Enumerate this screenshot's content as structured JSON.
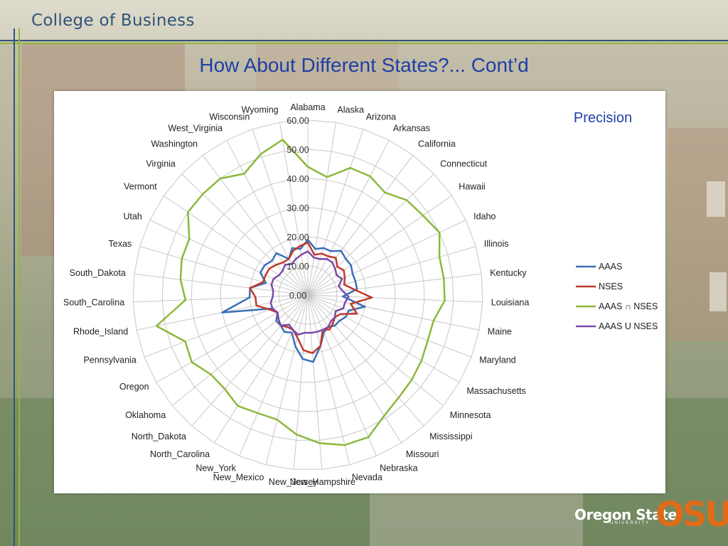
{
  "header": {
    "title": "College of Business"
  },
  "slide": {
    "title": "How About Different States?... Cont’d"
  },
  "logo": {
    "name": "Oregon State",
    "sub": "UNIVERSITY",
    "mark": "OSU"
  },
  "colors": {
    "aaas": "#3a6fb6",
    "nses": "#c0392b",
    "intersection": "#8cb83a",
    "union": "#7b4aa8",
    "title": "#1f3fa6",
    "header": "#2f5478"
  },
  "chart_data": {
    "type": "radar",
    "title": "Precision",
    "categories": [
      "Alabama",
      "Alaska",
      "Arizona",
      "Arkansas",
      "California",
      "Connecticut",
      "Hawaii",
      "Idaho",
      "Illinois",
      "Kentucky",
      "Louisiana",
      "Maine",
      "Maryland",
      "Massachusetts",
      "Minnesota",
      "Mississippi",
      "Missouri",
      "Nebraska",
      "Nevada",
      "New_Hampshire",
      "New_Jersey",
      "New_Mexico",
      "New_York",
      "North_Carolina",
      "North_Dakota",
      "Oklahoma",
      "Oregon",
      "Pennsylvania",
      "Rhode_Island",
      "South_Carolina",
      "South_Dakota",
      "Texas",
      "Utah",
      "Vermont",
      "Virginia",
      "Washington",
      "West_Virginia",
      "Wisconsin",
      "Wyoming"
    ],
    "rlim": [
      0,
      60
    ],
    "rticks": [
      "0.00",
      "10.00",
      "20.00",
      "30.00",
      "40.00",
      "50.00",
      "60.00"
    ],
    "grid": true,
    "legend": "right",
    "series": [
      {
        "name": "AAAS",
        "values": [
          19,
          16,
          17,
          17,
          19,
          18,
          18,
          17,
          17,
          17,
          12,
          20,
          15,
          15,
          14,
          14,
          13,
          14,
          18,
          23,
          22,
          18,
          14,
          15,
          14,
          14,
          12,
          13,
          30,
          20,
          20,
          15,
          18,
          18,
          17,
          18,
          14,
          17,
          16
        ]
      },
      {
        "name": "NSES",
        "values": [
          18,
          14,
          15,
          15,
          16,
          14,
          15,
          14,
          13,
          16,
          22,
          15,
          18,
          13,
          12,
          13,
          14,
          13,
          18,
          20,
          19,
          15,
          13,
          13,
          14,
          13,
          12,
          14,
          18,
          18,
          20,
          16,
          16,
          16,
          15,
          14,
          14,
          16,
          17
        ]
      },
      {
        "name": "AAAS ∩ NSES",
        "values": [
          44,
          41,
          46,
          46,
          44,
          47,
          48,
          50,
          47,
          47,
          47,
          44,
          44,
          45,
          46,
          47,
          49,
          53,
          53,
          51,
          48,
          44,
          44,
          45,
          43,
          43,
          46,
          45,
          53,
          42,
          44,
          45,
          45,
          50,
          50,
          50,
          47,
          51,
          54
        ]
      },
      {
        "name": "AAAS U NSES",
        "values": [
          15,
          13,
          13,
          14,
          14,
          13,
          12,
          13,
          11,
          12,
          14,
          13,
          13,
          11,
          12,
          12,
          13,
          13,
          13,
          13,
          13,
          14,
          13,
          12,
          14,
          13,
          12,
          13,
          13,
          12,
          12,
          13,
          13,
          12,
          12,
          13,
          12,
          13,
          14
        ]
      }
    ]
  }
}
